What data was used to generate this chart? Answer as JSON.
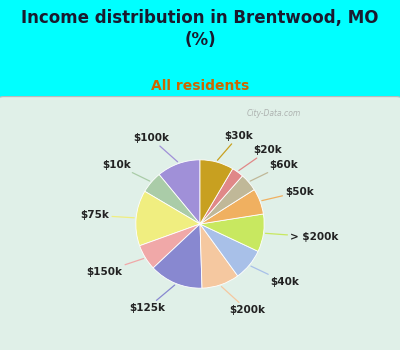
{
  "title": "Income distribution in Brentwood, MO\n(%)",
  "subtitle": "All residents",
  "title_color": "#1a1a2e",
  "subtitle_color": "#cc6600",
  "bg_color": "#00ffff",
  "chart_bg_color": "#e0f0e8",
  "watermark": "City-Data.com",
  "labels": [
    "$100k",
    "$10k",
    "$75k",
    "$150k",
    "$125k",
    "$200k",
    "$40k",
    "> $200k",
    "$50k",
    "$60k",
    "$20k",
    "$30k"
  ],
  "values": [
    11.0,
    5.5,
    14.0,
    6.5,
    13.5,
    9.5,
    8.0,
    9.5,
    6.5,
    4.5,
    3.0,
    8.5
  ],
  "colors": [
    "#a090d8",
    "#aacca8",
    "#f0ee80",
    "#f0a8a8",
    "#8888d0",
    "#f5c8a0",
    "#a8c0e8",
    "#c8e860",
    "#f0b060",
    "#c0b898",
    "#e08888",
    "#c8a020"
  ],
  "startangle": 90,
  "label_fontsize": 7.5,
  "title_fontsize": 12,
  "subtitle_fontsize": 10
}
